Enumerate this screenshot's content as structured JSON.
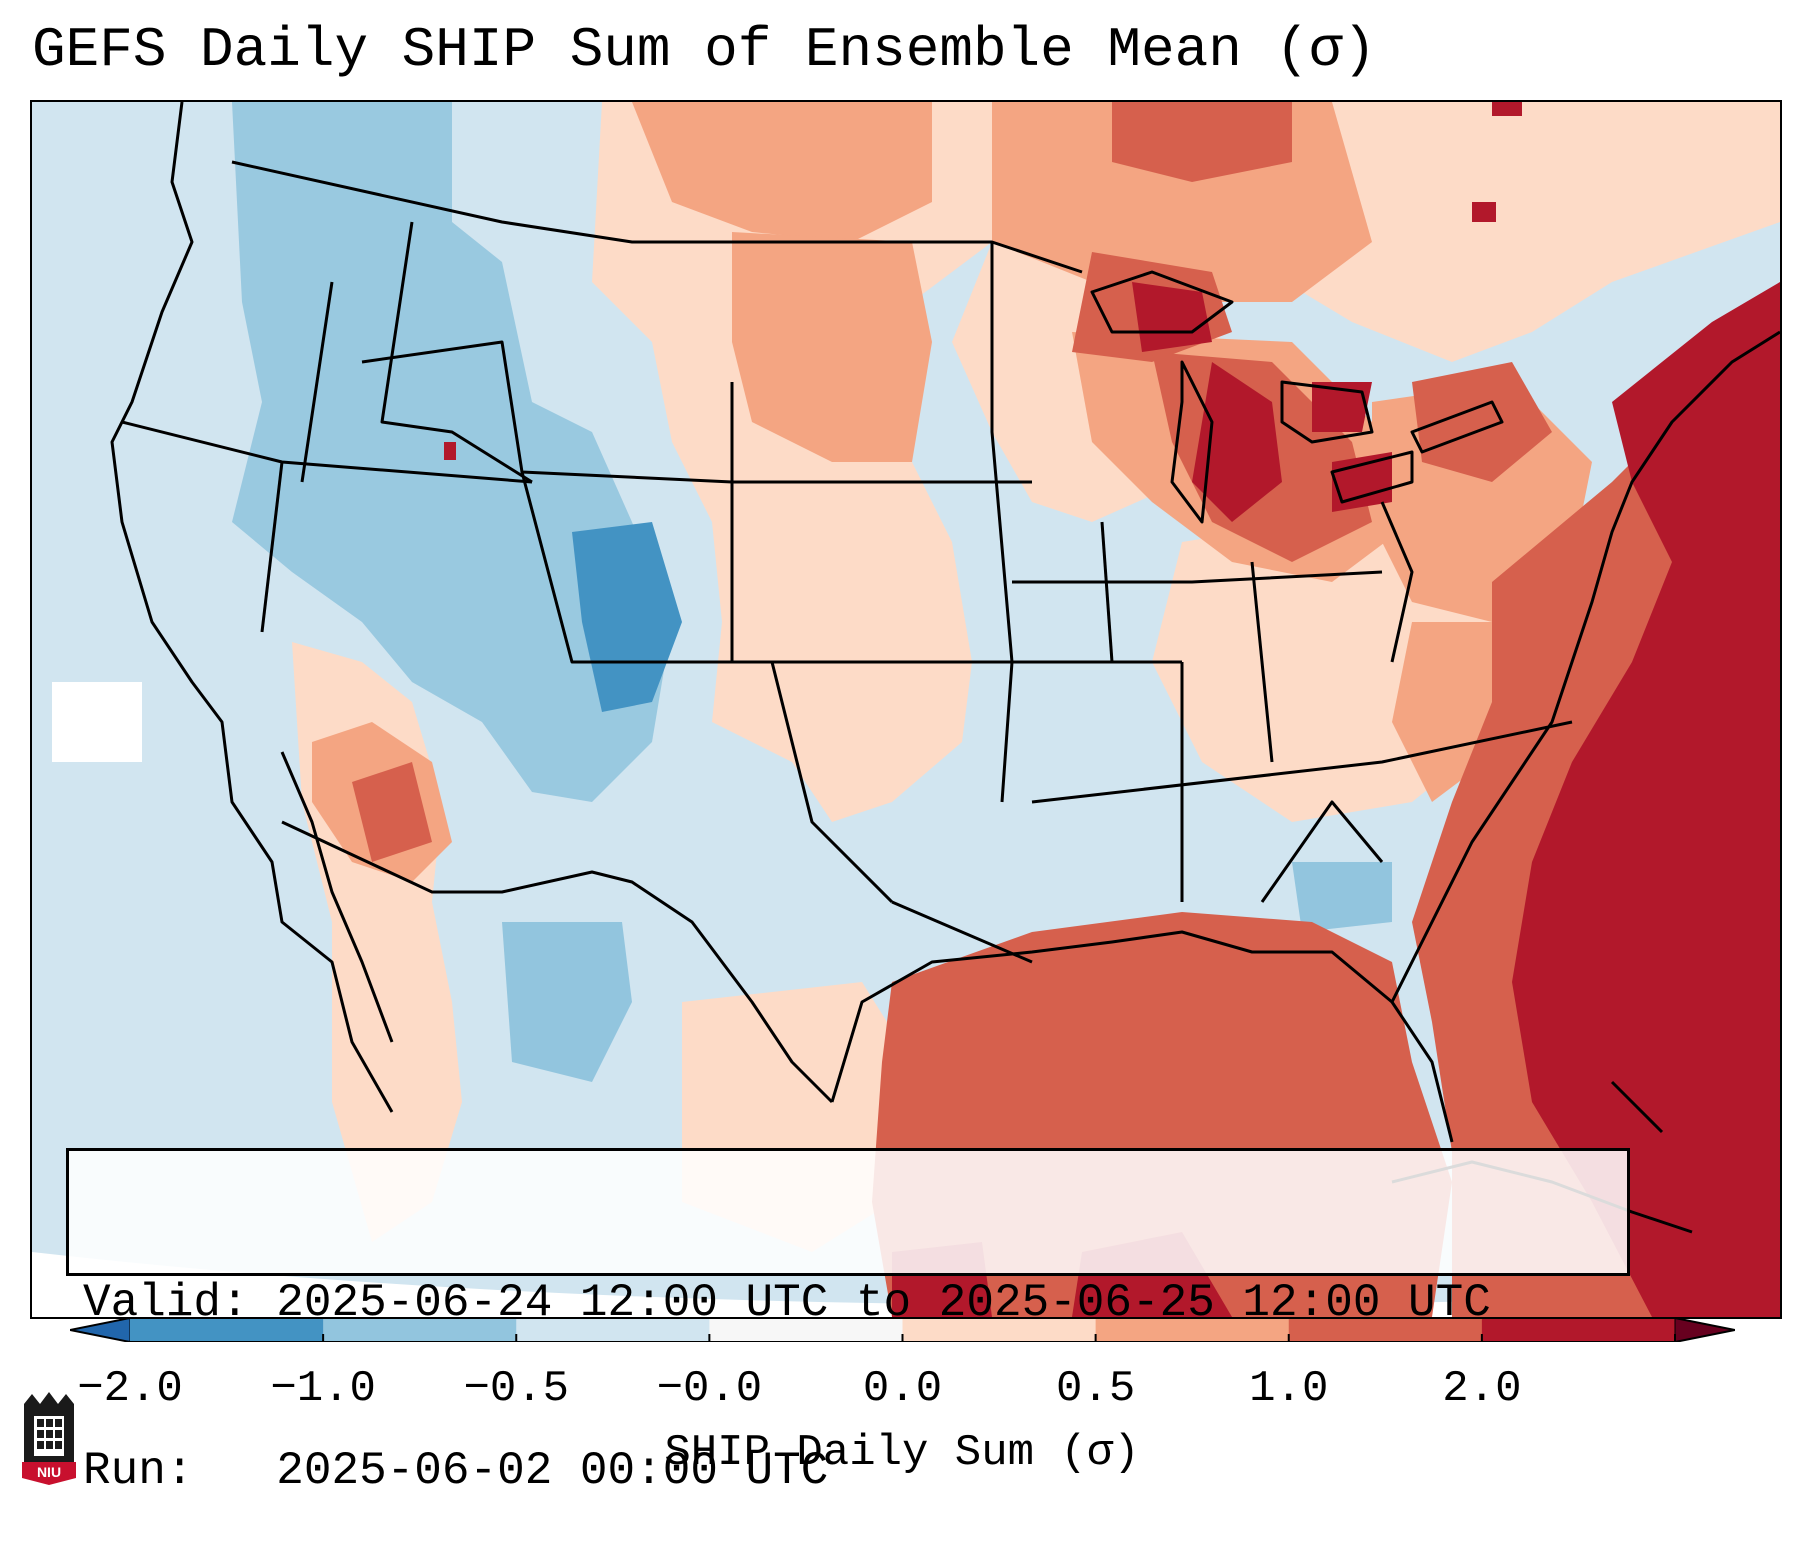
{
  "title": "GEFS Daily SHIP Sum of Ensemble Mean (σ)",
  "info": {
    "valid_label": "Valid:",
    "valid_value": "2025-06-24 12:00 UTC to 2025-06-25 12:00 UTC",
    "run_label": "Run:  ",
    "run_value": "2025-06-02 00:00 UTC"
  },
  "colorbar": {
    "label": "SHIP Daily Sum (σ)",
    "ticks": [
      "−2.0",
      "−1.0",
      "−0.5",
      "−0.0",
      "0.0",
      "0.5",
      "1.0",
      "2.0"
    ],
    "colors": [
      "#4393c3",
      "#92c5de",
      "#d1e5f0",
      "#f7f7f7",
      "#fddbc7",
      "#f4a582",
      "#d6604d",
      "#b2182b"
    ],
    "under_color": "#2166ac",
    "over_color": "#67001f"
  },
  "logo": {
    "text": "NIU"
  }
}
